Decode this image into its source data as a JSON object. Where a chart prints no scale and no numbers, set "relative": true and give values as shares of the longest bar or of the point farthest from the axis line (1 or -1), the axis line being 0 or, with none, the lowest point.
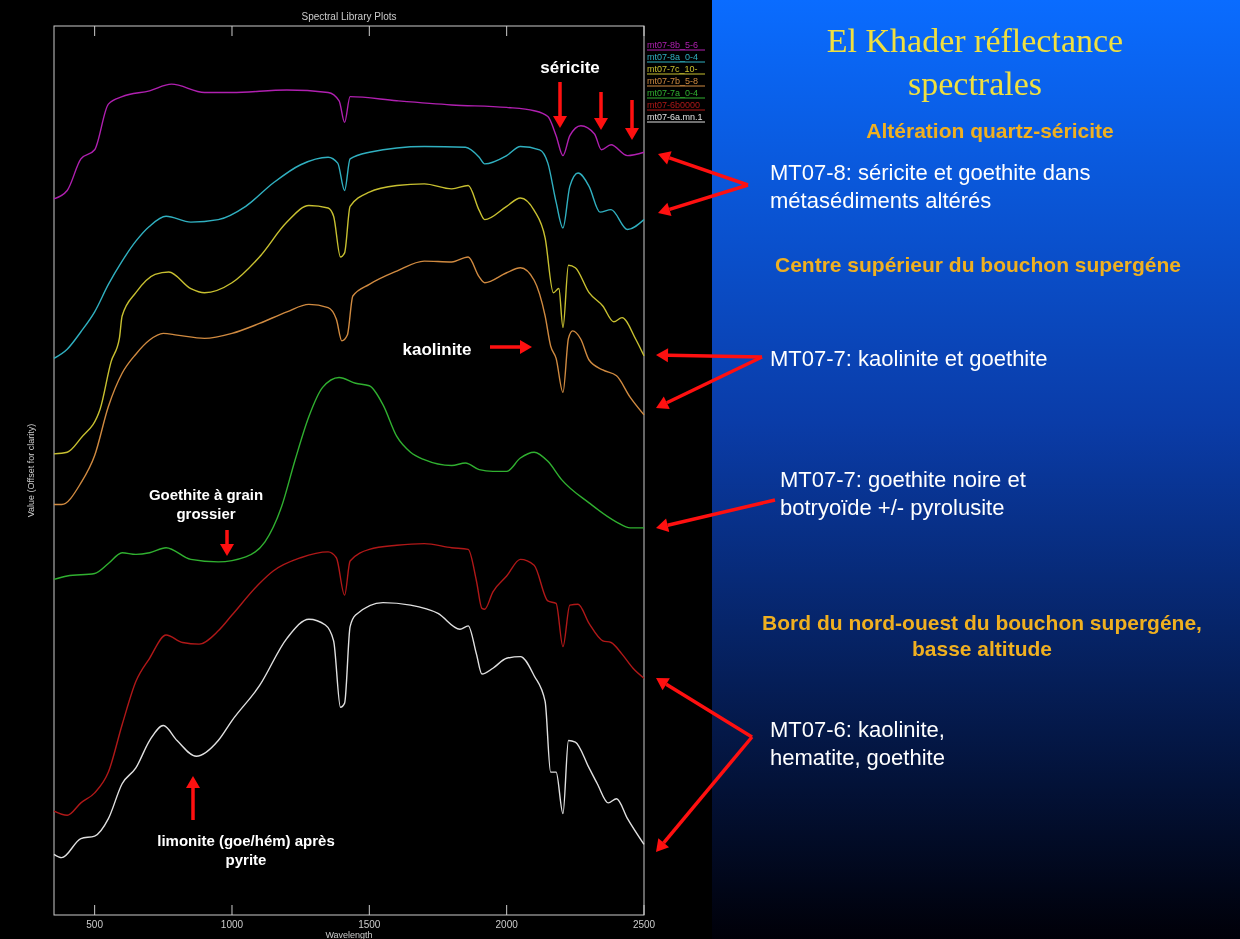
{
  "chart_data": {
    "type": "line",
    "title": "Spectral Library Plots",
    "xlabel": "Wavelength",
    "ylabel": "Value (Offset for clarity)",
    "relative": true,
    "xlim": [
      352,
      2500
    ],
    "xticks": [
      500,
      1000,
      1500,
      2000,
      2500
    ],
    "grid": false,
    "legend": "top right",
    "line_style": "solid",
    "marker": "none",
    "annotations": [
      "El Khader réflectance spectrales",
      "Altération quartz-séricite",
      "MT07-8: séricite et goethite dans métasédiments altérés",
      "Centre supérieur du bouchon supergéne",
      "MT07-7:  kaolinite et goethite",
      "MT07-7: goethite noire et botryoïde +/- pyrolusite",
      "Bord du nord-ouest du bouchon supergéne, basse altitude",
      "MT07-6:  kaolinite, hematite, goethite",
      "séricite",
      "kaolinite",
      "Goethite à grain grossier",
      "limonite (goe/hém) après pyrite"
    ],
    "series": [
      {
        "name": "mt07-8b_5-6",
        "color": "#b020b0",
        "x": [
          352,
          400,
          450,
          500,
          550,
          600,
          700,
          780,
          900,
          1000,
          1200,
          1350,
          1390,
          1410,
          1430,
          1600,
          1800,
          2000,
          2100,
          2150,
          2180,
          2205,
          2230,
          2270,
          2320,
          2345,
          2380,
          2440,
          2500
        ],
        "values": [
          0.862,
          0.872,
          0.91,
          0.921,
          0.976,
          0.985,
          0.992,
          1.0,
          0.99,
          0.99,
          0.993,
          0.99,
          0.98,
          0.954,
          0.985,
          0.98,
          0.975,
          0.972,
          0.968,
          0.961,
          0.938,
          0.914,
          0.938,
          0.95,
          0.94,
          0.921,
          0.927,
          0.914,
          0.918
        ]
      },
      {
        "name": "mt07-8a_0-4",
        "color": "#30b0c0",
        "x": [
          352,
          400,
          450,
          500,
          550,
          600,
          650,
          700,
          760,
          850,
          950,
          1050,
          1150,
          1250,
          1350,
          1385,
          1410,
          1430,
          1500,
          1700,
          1850,
          1900,
          1920,
          2000,
          2050,
          2120,
          2150,
          2180,
          2205,
          2230,
          2260,
          2300,
          2340,
          2380,
          2440,
          2500
        ],
        "values": [
          0.67,
          0.681,
          0.702,
          0.726,
          0.759,
          0.787,
          0.811,
          0.829,
          0.841,
          0.834,
          0.837,
          0.853,
          0.881,
          0.903,
          0.912,
          0.905,
          0.872,
          0.91,
          0.918,
          0.925,
          0.924,
          0.912,
          0.904,
          0.914,
          0.925,
          0.921,
          0.905,
          0.858,
          0.827,
          0.877,
          0.893,
          0.877,
          0.846,
          0.849,
          0.825,
          0.837
        ]
      },
      {
        "name": "mt07-7c_10-",
        "color": "#c8c030",
        "x": [
          352,
          400,
          450,
          520,
          560,
          590,
          600,
          650,
          720,
          770,
          850,
          900,
          1000,
          1100,
          1200,
          1280,
          1350,
          1370,
          1395,
          1410,
          1430,
          1500,
          1600,
          1700,
          1800,
          1860,
          1900,
          1920,
          2000,
          2050,
          2100,
          2140,
          2170,
          2190,
          2205,
          2225,
          2250,
          2300,
          2350,
          2390,
          2420,
          2470,
          2500
        ],
        "values": [
          0.555,
          0.557,
          0.574,
          0.609,
          0.666,
          0.694,
          0.721,
          0.749,
          0.771,
          0.774,
          0.754,
          0.749,
          0.761,
          0.792,
          0.834,
          0.854,
          0.851,
          0.841,
          0.792,
          0.797,
          0.853,
          0.87,
          0.878,
          0.88,
          0.874,
          0.878,
          0.848,
          0.837,
          0.853,
          0.863,
          0.848,
          0.815,
          0.749,
          0.754,
          0.707,
          0.782,
          0.779,
          0.749,
          0.733,
          0.714,
          0.719,
          0.693,
          0.673
        ]
      },
      {
        "name": "mt07-7b_5-8",
        "color": "#d08a40",
        "x": [
          352,
          380,
          450,
          500,
          550,
          600,
          650,
          700,
          750,
          800,
          900,
          1000,
          1100,
          1200,
          1280,
          1350,
          1380,
          1400,
          1420,
          1440,
          1500,
          1600,
          1700,
          1800,
          1860,
          1900,
          1920,
          2000,
          2050,
          2100,
          2140,
          2160,
          2180,
          2205,
          2225,
          2240,
          2270,
          2300,
          2350,
          2400,
          2450,
          2500
        ],
        "values": [
          0.494,
          0.494,
          0.52,
          0.553,
          0.612,
          0.652,
          0.675,
          0.692,
          0.7,
          0.698,
          0.694,
          0.7,
          0.712,
          0.726,
          0.735,
          0.731,
          0.717,
          0.691,
          0.698,
          0.745,
          0.759,
          0.775,
          0.787,
          0.786,
          0.792,
          0.768,
          0.761,
          0.773,
          0.779,
          0.764,
          0.721,
          0.685,
          0.67,
          0.629,
          0.694,
          0.703,
          0.693,
          0.668,
          0.656,
          0.649,
          0.623,
          0.602
        ]
      },
      {
        "name": "mt07-7a_0-4",
        "color": "#30b030",
        "x": [
          352,
          400,
          500,
          550,
          600,
          650,
          700,
          760,
          850,
          950,
          1050,
          1120,
          1180,
          1230,
          1280,
          1330,
          1390,
          1450,
          1500,
          1550,
          1600,
          1650,
          1700,
          1800,
          1850,
          1900,
          1950,
          2000,
          2050,
          2100,
          2150,
          2200,
          2300,
          2400,
          2450,
          2500
        ],
        "values": [
          0.404,
          0.408,
          0.411,
          0.423,
          0.436,
          0.434,
          0.436,
          0.442,
          0.428,
          0.425,
          0.431,
          0.449,
          0.491,
          0.548,
          0.6,
          0.635,
          0.647,
          0.64,
          0.637,
          0.614,
          0.576,
          0.557,
          0.548,
          0.541,
          0.544,
          0.536,
          0.534,
          0.534,
          0.55,
          0.557,
          0.546,
          0.524,
          0.496,
          0.473,
          0.466,
          0.466
        ]
      },
      {
        "name": "mt07-6b0000",
        "color": "#b01818",
        "x": [
          352,
          400,
          450,
          500,
          550,
          600,
          650,
          700,
          760,
          820,
          880,
          950,
          1000,
          1100,
          1150,
          1250,
          1350,
          1380,
          1410,
          1430,
          1500,
          1600,
          1700,
          1800,
          1860,
          1890,
          1910,
          1920,
          1950,
          2000,
          2050,
          2100,
          2150,
          2180,
          2205,
          2230,
          2260,
          2300,
          2350,
          2380,
          2420,
          2460,
          2500
        ],
        "values": [
          0.125,
          0.12,
          0.135,
          0.147,
          0.172,
          0.229,
          0.281,
          0.309,
          0.337,
          0.328,
          0.326,
          0.342,
          0.361,
          0.399,
          0.414,
          0.43,
          0.437,
          0.43,
          0.385,
          0.426,
          0.44,
          0.445,
          0.447,
          0.442,
          0.44,
          0.402,
          0.369,
          0.368,
          0.389,
          0.408,
          0.428,
          0.421,
          0.378,
          0.375,
          0.323,
          0.373,
          0.374,
          0.351,
          0.33,
          0.328,
          0.314,
          0.297,
          0.285
        ]
      },
      {
        "name": "mt07-6a.mn.1",
        "color": "#e0e0e0",
        "x": [
          352,
          380,
          450,
          500,
          550,
          600,
          650,
          700,
          750,
          800,
          870,
          950,
          1000,
          1100,
          1200,
          1280,
          1340,
          1370,
          1395,
          1410,
          1430,
          1450,
          1550,
          1650,
          1750,
          1830,
          1860,
          1890,
          1910,
          1950,
          2000,
          2050,
          2100,
          2140,
          2160,
          2180,
          2205,
          2225,
          2250,
          2300,
          2330,
          2370,
          2400,
          2440,
          2500
        ],
        "values": [
          0.073,
          0.069,
          0.092,
          0.095,
          0.116,
          0.158,
          0.177,
          0.21,
          0.228,
          0.21,
          0.191,
          0.21,
          0.234,
          0.276,
          0.333,
          0.356,
          0.349,
          0.33,
          0.25,
          0.255,
          0.347,
          0.361,
          0.376,
          0.373,
          0.363,
          0.344,
          0.348,
          0.314,
          0.29,
          0.297,
          0.309,
          0.311,
          0.288,
          0.257,
          0.172,
          0.172,
          0.122,
          0.21,
          0.208,
          0.177,
          0.158,
          0.135,
          0.14,
          0.116,
          0.085
        ]
      }
    ]
  }
}
